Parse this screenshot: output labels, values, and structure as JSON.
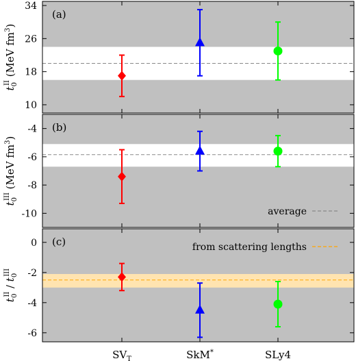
{
  "chart_data": [
    {
      "type": "scatter",
      "panel_label": "(a)",
      "ylabel": "t_0^II (MeV fm^3)",
      "ylabel_main": "t",
      "ylabel_sub": "0",
      "ylabel_sup": "II",
      "ylabel_rest": "(MeV fm",
      "ylabel_unit_sup": "3",
      "ylabel_close": ")",
      "ylim": [
        8,
        35
      ],
      "yticks": [
        10,
        18,
        26,
        34
      ],
      "ytick_labels": [
        "10",
        "18",
        "26",
        "34"
      ],
      "band": [
        16,
        24
      ],
      "band_color": "#ffffff",
      "reference_line": 20,
      "reference_color": "#888888",
      "categories": [
        "SV_T",
        "SkM*",
        "SLy4"
      ],
      "points": [
        {
          "category": "SV_T",
          "y": 17,
          "ymin": 12,
          "ymax": 22,
          "color": "#ff0000",
          "marker": "diamond"
        },
        {
          "category": "SkM*",
          "y": 25,
          "ymin": 17,
          "ymax": 33,
          "color": "#0000ff",
          "marker": "triangle"
        },
        {
          "category": "SLy4",
          "y": 23,
          "ymin": 16,
          "ymax": 30,
          "color": "#00ff00",
          "marker": "circle"
        }
      ]
    },
    {
      "type": "scatter",
      "panel_label": "(b)",
      "ylabel": "t_0^III (MeV fm^3)",
      "ylabel_main": "t",
      "ylabel_sub": "0",
      "ylabel_sup": "III",
      "ylabel_rest": "(MeV fm",
      "ylabel_unit_sup": "3",
      "ylabel_close": ")",
      "ylim": [
        -11,
        -3
      ],
      "yticks": [
        -10,
        -8,
        -6,
        -4
      ],
      "ytick_labels": [
        "-10",
        "-8",
        "-6",
        "-4"
      ],
      "band": [
        -6.7,
        -5.1
      ],
      "band_color": "#ffffff",
      "reference_line": -5.85,
      "reference_color": "#888888",
      "legend": {
        "label": "average",
        "color": "#888888",
        "position": "bottom-right"
      },
      "categories": [
        "SV_T",
        "SkM*",
        "SLy4"
      ],
      "points": [
        {
          "category": "SV_T",
          "y": -7.4,
          "ymin": -9.3,
          "ymax": -5.5,
          "color": "#ff0000",
          "marker": "diamond"
        },
        {
          "category": "SkM*",
          "y": -5.6,
          "ymin": -7.0,
          "ymax": -4.2,
          "color": "#0000ff",
          "marker": "triangle"
        },
        {
          "category": "SLy4",
          "y": -5.6,
          "ymin": -6.7,
          "ymax": -4.5,
          "color": "#00ff00",
          "marker": "circle"
        }
      ]
    },
    {
      "type": "scatter",
      "panel_label": "(c)",
      "ylabel": "t_0^II / t_0^III",
      "ylim": [
        -6.6,
        0.9
      ],
      "yticks": [
        -6,
        -4,
        -2,
        0
      ],
      "ytick_labels": [
        "-6",
        "-4",
        "-2",
        "0"
      ],
      "band": [
        -3.0,
        -2.1
      ],
      "band_color": "#ffe4b0",
      "reference_line": -2.5,
      "reference_color": "#ffa500",
      "legend": {
        "label": "from scattering lengths",
        "color": "#ffa500",
        "position": "top-right"
      },
      "categories": [
        "SV_T",
        "SkM*",
        "SLy4"
      ],
      "category_labels": [
        {
          "main": "SV",
          "sub": "T",
          "sup": ""
        },
        {
          "main": "SkM",
          "sub": "",
          "sup": "*"
        },
        {
          "main": "SLy4",
          "sub": "",
          "sup": ""
        }
      ],
      "points": [
        {
          "category": "SV_T",
          "y": -2.3,
          "ymin": -3.2,
          "ymax": -1.4,
          "color": "#ff0000",
          "marker": "diamond"
        },
        {
          "category": "SkM*",
          "y": -4.5,
          "ymin": -6.3,
          "ymax": -2.7,
          "color": "#0000ff",
          "marker": "triangle"
        },
        {
          "category": "SLy4",
          "y": -4.1,
          "ymin": -5.6,
          "ymax": -2.6,
          "color": "#00ff00",
          "marker": "circle"
        }
      ]
    }
  ],
  "plot_background": "#c0c0c0"
}
